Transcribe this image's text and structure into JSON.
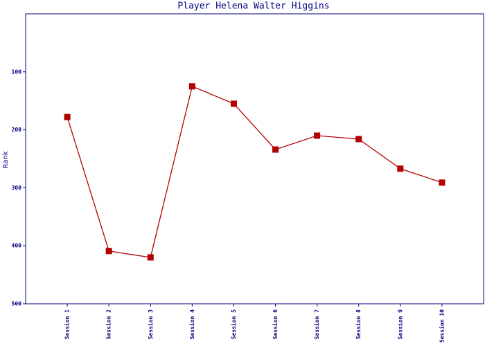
{
  "chart_data": {
    "type": "line",
    "title": "Player Helena Walter Higgins",
    "y_label": "Rank",
    "categories": [
      "Session 1",
      "Session 2",
      "Session 3",
      "Session 4",
      "Session 5",
      "Session 6",
      "Session 7",
      "Session 8",
      "Session 9",
      "Session 10"
    ],
    "series": [
      {
        "name": "Rank",
        "color": "#b00000",
        "values": [
          178,
          409,
          420,
          125,
          155,
          234,
          210,
          216,
          267,
          291
        ]
      }
    ],
    "ylim": [
      0,
      500
    ],
    "yticks": [
      100,
      200,
      300,
      400,
      500
    ],
    "y_inverted": true,
    "grid": false,
    "axis_color": "#000080"
  }
}
